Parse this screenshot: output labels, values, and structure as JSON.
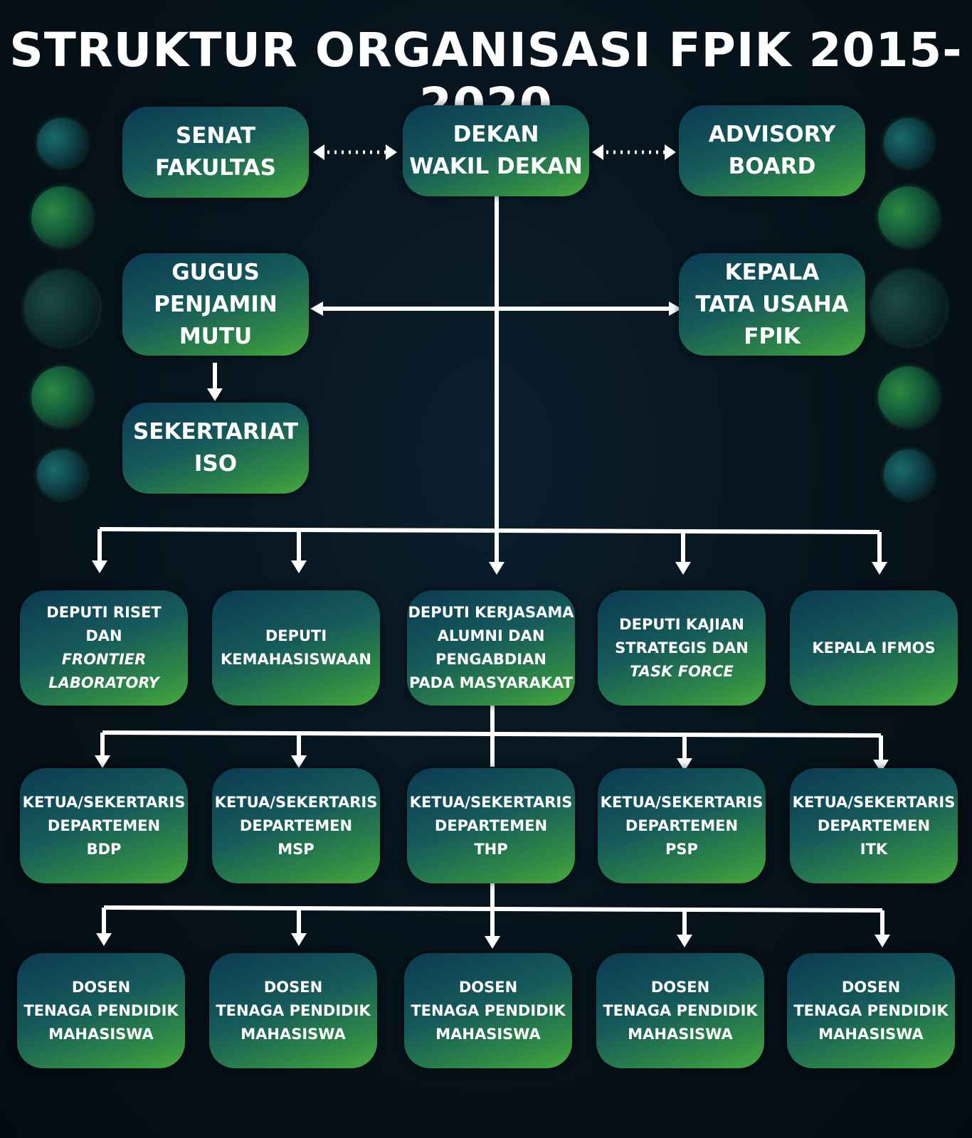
{
  "title": "STRUKTUR ORGANISASI FPIK 2015-2020",
  "top": {
    "senat": [
      "SENAT",
      "FAKULTAS"
    ],
    "dekan": [
      "DEKAN",
      "WAKIL DEKAN"
    ],
    "advisory": [
      "ADVISORY",
      "BOARD"
    ]
  },
  "second": {
    "gugus": [
      "GUGUS",
      "PENJAMIN",
      "MUTU"
    ],
    "kepala_tu": [
      "KEPALA",
      "TATA USAHA",
      "FPIK"
    ],
    "sekretariat": [
      "SEKERTARIAT",
      "ISO"
    ]
  },
  "deputies": {
    "riset": [
      "DEPUTI RISET",
      "DAN",
      "FRONTIER",
      "LABORATORY"
    ],
    "kemahasiswaan": [
      "DEPUTI",
      "KEMAHASISWAAN"
    ],
    "kerjasama": [
      "DEPUTI KERJASAMA",
      "ALUMNI DAN",
      "PENGABDIAN",
      "PADA MASYARAKAT"
    ],
    "kajian": [
      "DEPUTI KAJIAN",
      "STRATEGIS DAN",
      "TASK FORCE"
    ],
    "ifmos": [
      "KEPALA IFMOS"
    ]
  },
  "departments": [
    [
      "KETUA/SEKERTARIS",
      "DEPARTEMEN",
      "BDP"
    ],
    [
      "KETUA/SEKERTARIS",
      "DEPARTEMEN",
      "MSP"
    ],
    [
      "KETUA/SEKERTARIS",
      "DEPARTEMEN",
      "THP"
    ],
    [
      "KETUA/SEKERTARIS",
      "DEPARTEMEN",
      "PSP"
    ],
    [
      "KETUA/SEKERTARIS",
      "DEPARTEMEN",
      "ITK"
    ]
  ],
  "bottom": [
    [
      "DOSEN",
      "TENAGA PENDIDIK",
      "MAHASISWA"
    ],
    [
      "DOSEN",
      "TENAGA PENDIDIK",
      "MAHASISWA"
    ],
    [
      "DOSEN",
      "TENAGA PENDIDIK",
      "MAHASISWA"
    ],
    [
      "DOSEN",
      "TENAGA PENDIDIK",
      "MAHASISWA"
    ],
    [
      "DOSEN",
      "TENAGA PENDIDIK",
      "MAHASISWA"
    ]
  ],
  "colors": {
    "node_dark": "#0b3a52",
    "node_green": "#47a83e",
    "line": "#ffffff",
    "background": "#07141d"
  }
}
